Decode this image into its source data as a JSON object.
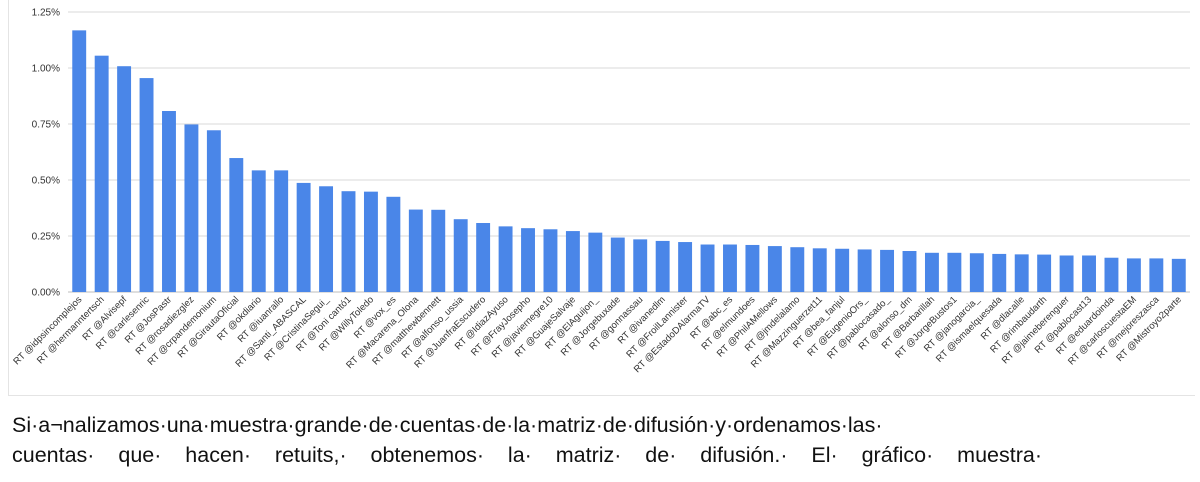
{
  "chart_data": {
    "type": "bar",
    "title": "",
    "xlabel": "",
    "ylabel": "",
    "ylim": [
      0,
      0.0125
    ],
    "yticks": [
      "0.00%",
      "0.25%",
      "0.50%",
      "0.75%",
      "1.00%",
      "1.25%"
    ],
    "ytick_values": [
      0,
      0.0025,
      0.005,
      0.0075,
      0.01,
      0.0125
    ],
    "grid": true,
    "bar_color": "#4a86e8",
    "categories": [
      "RT @idpsincomplejos",
      "RT @hermanntertsch",
      "RT @Alvisepf",
      "RT @carlesenric",
      "RT @JosPastr",
      "RT @rosadiezglez",
      "RT @crpandemonium",
      "RT @GirautaOficial",
      "RT @okdiario",
      "RT @iuanrallo",
      "RT @Santi_ABASCAL",
      "RT @CristinaSegui_",
      "RT @Toni cantó1",
      "RT @WillyToledo",
      "RT @vox_es",
      "RT @Macarena_Olona",
      "RT @matthewbennett",
      "RT @alfonso_ussia",
      "RT @JuanfraEscudero",
      "RT @IdiazAyuso",
      "RT @FrayJosepho",
      "RT @javiernegre10",
      "RT @GuajeSalvaje",
      "RT @ElAguijon_",
      "RT @Jorgebuxade",
      "RT @gonnassau",
      "RT @ivanedlm",
      "RT @FroilLannister",
      "RT @EstadoDAlarmaTV",
      "RT @abc_es",
      "RT @elmundoes",
      "RT @PhilAMellows",
      "RT @jmdelalamo",
      "RT @Mazzinguerzet11",
      "RT @bea_fanjul",
      "RT @EugenioOrs_",
      "RT @pablocasado_",
      "RT @alonso_dm",
      "RT @Barbarillah",
      "RT @JorgeBustos1",
      "RT @janogarcia_",
      "RT @ismaelquesada",
      "RT @dlacalle",
      "RT @rimbaudarth",
      "RT @jaimeberenguer",
      "RT @pablocast13",
      "RT @eduardoinda",
      "RT @carloscuestaEM",
      "RT @mejoreszasca",
      "RT @Mistroyo2parte"
    ],
    "values": [
      0.01168,
      0.01055,
      0.01008,
      0.00955,
      0.00808,
      0.00748,
      0.00722,
      0.00598,
      0.00543,
      0.00543,
      0.00487,
      0.00472,
      0.0045,
      0.00448,
      0.00425,
      0.00368,
      0.00367,
      0.00325,
      0.00308,
      0.00293,
      0.00285,
      0.0028,
      0.00272,
      0.00265,
      0.00243,
      0.00235,
      0.00228,
      0.00223,
      0.00212,
      0.00212,
      0.0021,
      0.00205,
      0.002,
      0.00195,
      0.00193,
      0.0019,
      0.00188,
      0.00183,
      0.00175,
      0.00175,
      0.00173,
      0.0017,
      0.00168,
      0.00167,
      0.00163,
      0.00163,
      0.00153,
      0.0015,
      0.0015,
      0.00148
    ]
  },
  "caption": {
    "line1": "Si·a¬nalizamos·una·muestra·grande·de·cuentas·de·la·matriz·de·difusión·y·ordenamos·las·",
    "line2": "cuentas· que· hacen· retuits,· obtenemos· la· matriz· de· difusión.· El· gráfico· muestra·"
  }
}
